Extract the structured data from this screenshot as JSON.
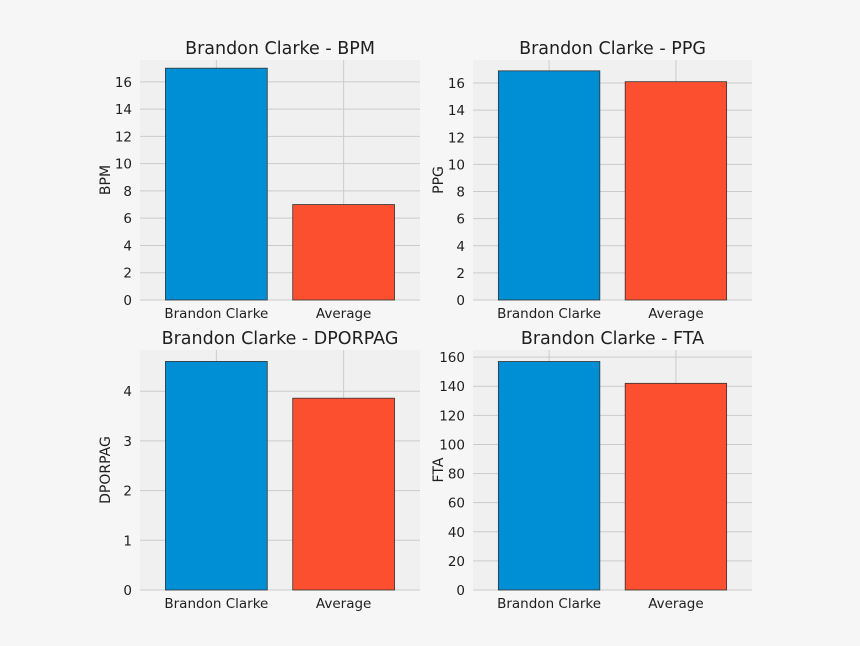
{
  "colors": {
    "figure_bg": "#f6f6f6",
    "axes_bg": "#f0f0f0",
    "grid": "#cbcbcb",
    "edge": "#333333",
    "player": "#008fd5",
    "average": "#fc4f30"
  },
  "chart_data": [
    {
      "type": "bar",
      "title": "Brandon Clarke - BPM",
      "xlabel": "",
      "ylabel": "BPM",
      "categories": [
        "Brandon Clarke",
        "Average"
      ],
      "values": [
        17.0,
        7.0
      ],
      "ylim": [
        0,
        17.6
      ],
      "yticks": [
        0,
        2,
        4,
        6,
        8,
        10,
        12,
        14,
        16
      ],
      "ytick_labels": [
        "0",
        "2",
        "4",
        "6",
        "8",
        "10",
        "12",
        "14",
        "16"
      ],
      "grid": true
    },
    {
      "type": "bar",
      "title": "Brandon Clarke - PPG",
      "xlabel": "",
      "ylabel": "PPG",
      "categories": [
        "Brandon Clarke",
        "Average"
      ],
      "values": [
        16.9,
        16.1
      ],
      "ylim": [
        0,
        17.7
      ],
      "yticks": [
        0,
        2,
        4,
        6,
        8,
        10,
        12,
        14,
        16
      ],
      "ytick_labels": [
        "0",
        "2",
        "4",
        "6",
        "8",
        "10",
        "12",
        "14",
        "16"
      ],
      "grid": true
    },
    {
      "type": "bar",
      "title": "Brandon Clarke - DPORPAG",
      "xlabel": "",
      "ylabel": "DPORPAG",
      "categories": [
        "Brandon Clarke",
        "Average"
      ],
      "values": [
        4.6,
        3.86
      ],
      "ylim": [
        0,
        4.83
      ],
      "yticks": [
        0,
        1,
        2,
        3,
        4
      ],
      "ytick_labels": [
        "0",
        "1",
        "2",
        "3",
        "4"
      ],
      "grid": true
    },
    {
      "type": "bar",
      "title": "Brandon Clarke - FTA",
      "xlabel": "",
      "ylabel": "FTA",
      "categories": [
        "Brandon Clarke",
        "Average"
      ],
      "values": [
        157,
        142
      ],
      "ylim": [
        0,
        164.9
      ],
      "yticks": [
        0,
        20,
        40,
        60,
        80,
        100,
        120,
        140,
        160
      ],
      "ytick_labels": [
        "0",
        "20",
        "40",
        "60",
        "80",
        "100",
        "120",
        "140",
        "160"
      ],
      "grid": true
    }
  ]
}
